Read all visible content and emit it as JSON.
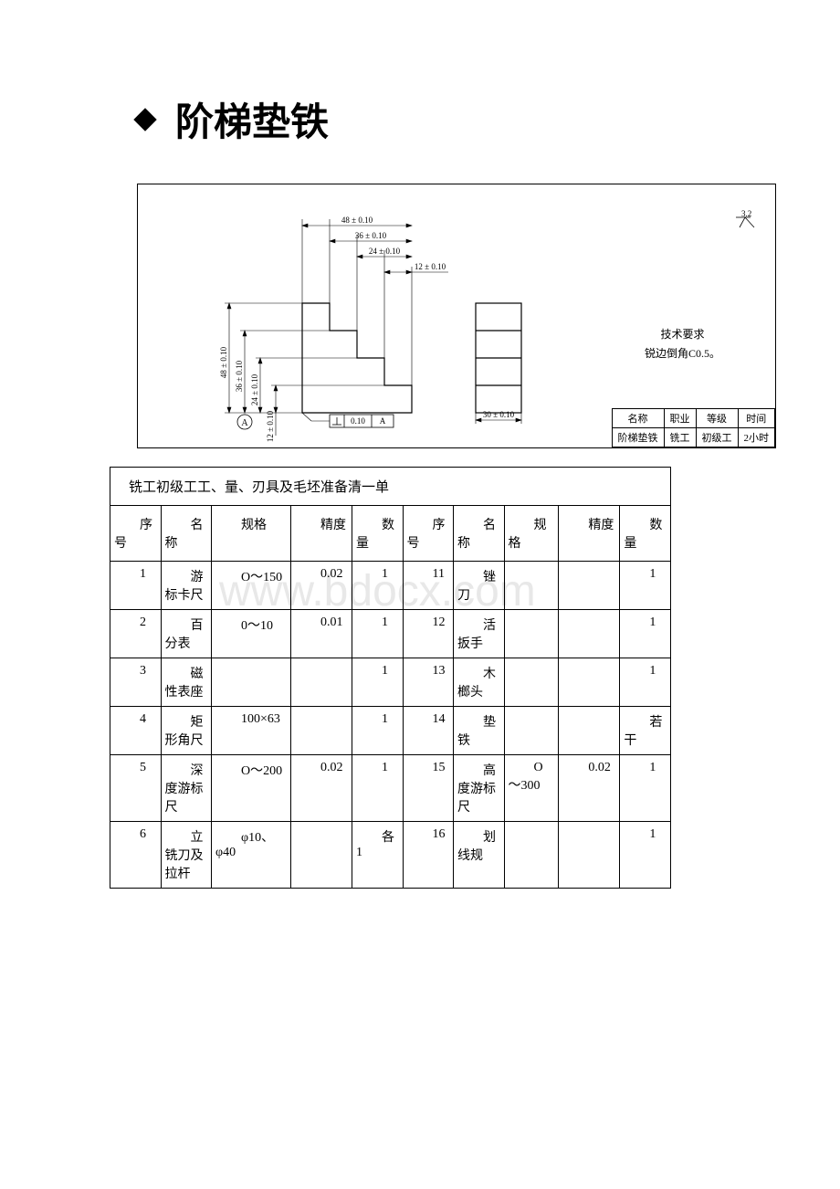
{
  "title": "阶梯垫铁",
  "tech_requirement": {
    "title": "技术要求",
    "text": "锐边倒角C0.5。"
  },
  "roughness_value": "3.2",
  "dimensions": {
    "h_48": "48 ± 0.10",
    "h_36": "36 ± 0.10",
    "h_24": "24 ± 0.10",
    "h_12": "12 ± 0.10",
    "v_48": "48 ± 0.10",
    "v_36": "36 ± 0.10",
    "v_24": "24 ± 0.10",
    "v_12": "12 ± 0.10",
    "w_30": "30 ± 0.10",
    "perp_tol": "0.10",
    "datum": "A"
  },
  "info_table": {
    "headers": [
      "名称",
      "职业",
      "等级",
      "时间"
    ],
    "values": [
      "阶梯垫铁",
      "铣工",
      "初级工",
      "2小时"
    ]
  },
  "materials": {
    "caption": "铣工初级工工、量、刃具及毛坯准备清一单",
    "columns": [
      "序号",
      "名称",
      "规格",
      "精度",
      "数量",
      "序号",
      "名称",
      "规格",
      "精度",
      "数量"
    ],
    "rows": [
      [
        "1",
        "游标卡尺",
        "O～150",
        "0.02",
        "1",
        "11",
        "锉刀",
        "",
        "",
        "1"
      ],
      [
        "2",
        "百分表",
        "0～10",
        "0.01",
        "1",
        "12",
        "活扳手",
        "",
        "",
        "1"
      ],
      [
        "3",
        "磁性表座",
        "",
        "",
        "1",
        "13",
        "木榔头",
        "",
        "",
        "1"
      ],
      [
        "4",
        "矩形角尺",
        "100×63",
        "",
        "1",
        "14",
        "垫铁",
        "",
        "",
        "若干"
      ],
      [
        "5",
        "深度游标尺",
        "O～200",
        "0.02",
        "1",
        "15",
        "高度游标尺",
        "O～300",
        "0.02",
        "1"
      ],
      [
        "6",
        "立铣刀及拉杆",
        "φ10、φ40",
        "",
        "各1",
        "16",
        "划线规",
        "",
        "",
        "1"
      ]
    ]
  },
  "colors": {
    "bg": "#ffffff",
    "text": "#000000",
    "line": "#000000",
    "watermark": "#e8e8e8"
  },
  "watermark_text": "www.bdocx.com"
}
